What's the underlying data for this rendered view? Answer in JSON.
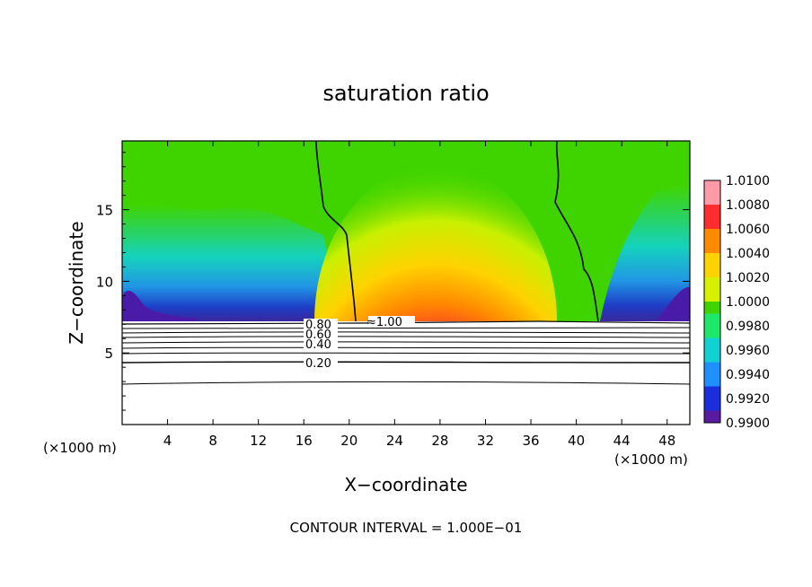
{
  "chart_data": {
    "type": "heatmap",
    "title": "saturation ratio",
    "xlabel": "X−coordinate",
    "ylabel": "Z−coordinate",
    "x_unit": "(×1000 m)",
    "footer": "CONTOUR INTERVAL = 1.000E−01",
    "xlim": [
      0,
      50
    ],
    "ylim": [
      0,
      19.8
    ],
    "x_ticks": [
      4,
      8,
      12,
      16,
      20,
      24,
      28,
      32,
      36,
      40,
      44,
      48
    ],
    "x_tick_labels": [
      "4",
      "8",
      "12",
      "16",
      "20",
      "24",
      "28",
      "32",
      "36",
      "40",
      "44",
      "48"
    ],
    "y_ticks": [
      5,
      10,
      15
    ],
    "y_tick_labels": [
      "5",
      "10",
      "15"
    ],
    "colorbar": {
      "range": [
        0.99,
        1.01
      ],
      "ticks": [
        "1.0100",
        "1.0080",
        "1.0060",
        "1.0040",
        "1.0020",
        "1.0000",
        "0.9980",
        "0.9960",
        "0.9940",
        "0.9920",
        "0.9900"
      ],
      "colors": [
        "#ff9aa8",
        "#ff2d2d",
        "#ff8a00",
        "#ffd200",
        "#d6f000",
        "#3fd400",
        "#1ee86a",
        "#10d2d2",
        "#1e90ff",
        "#1a2edc",
        "#5a1aa0"
      ]
    },
    "contour_labels": [
      "0.80",
      "0.60",
      "0.40",
      "0.20",
      "1.00"
    ],
    "contour_levels_below": [
      0.2,
      0.3,
      0.4,
      0.5,
      0.6,
      0.7,
      0.8,
      0.9,
      1.0
    ],
    "contour_line_unit_level": 1.0
  }
}
